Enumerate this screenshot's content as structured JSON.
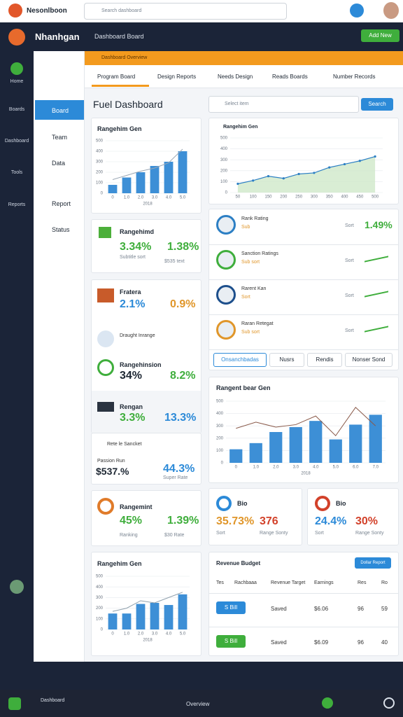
{
  "browser": {
    "logo": "Nesonlboon",
    "search": "Search dashboard"
  },
  "header": {
    "brand": "Nhanhgan",
    "subtitle": "Dashboard Board",
    "button": "Add New"
  },
  "nav": [
    "Home",
    "Boards",
    "Dashboard",
    "Tools",
    "Reports"
  ],
  "subnav": [
    "Board",
    "Team",
    "Data",
    "Report",
    "Status"
  ],
  "notice": "Dashboard Overview",
  "tabs": [
    "Program Board",
    "Design Reports",
    "Needs Design",
    "Reads Boards",
    "Number Records"
  ],
  "page_title": "Fuel Dashboard",
  "select": "Select item",
  "search_button": "Search",
  "kpis": [
    {
      "title": "Rangehimd",
      "v1": "3.34%",
      "v2": "1.38%",
      "note1": "Subtitle sort",
      "note2": "$535 text"
    },
    {
      "title": "Fratera",
      "v1": "2.1%",
      "v2": "0.9%"
    },
    {
      "title": "Draught Inrange"
    },
    {
      "title": "Rangehinsion",
      "v1": "34%",
      "v2": "8.2%"
    },
    {
      "title": "Rengan",
      "v1": "3.3%",
      "v2": "13.3%"
    },
    {
      "title": "Rete le Sancket",
      "label": "Passion Run",
      "v1": "$537.%",
      "v2": "44.3%",
      "note2": "Super Rate"
    },
    {
      "title": "Rangemint",
      "v1": "45%",
      "v2": "1.39%",
      "note1": "Ranking",
      "note2": "$30 Rate"
    }
  ],
  "list": {
    "rows": [
      {
        "title": "Rank Rating",
        "sub": "Sub",
        "value": "1.49%",
        "label": "Sort"
      },
      {
        "title": "Sanction Ratings",
        "sub": "Sub sort",
        "label": "Sort"
      },
      {
        "title": "Rarent Kan",
        "sub": "Sort",
        "label": "Sort"
      },
      {
        "title": "Raran Retegat",
        "sub": "Sub sort",
        "label": "Sort"
      }
    ],
    "buttons": [
      "Onsanchbadas",
      "Nusrs",
      "Rendis",
      "Nonser Sond"
    ]
  },
  "small_cards": [
    {
      "title": "Bio",
      "v1": "35.73%",
      "v2": "376",
      "note1": "Sort",
      "note2": "Range Sonty"
    },
    {
      "title": "Bio",
      "v1": "24.4%",
      "v2": "30%",
      "note1": "Sort",
      "note2": "Range Sonty"
    }
  ],
  "table": {
    "title": "Revenue Budget",
    "button": "Dollar Report",
    "headers": [
      "Tes",
      "Rachbaaa",
      "Revenue Target",
      "Earnings",
      "Res",
      "Ro"
    ],
    "rows": [
      [
        "S Bill",
        "Saved",
        "$6.06",
        "96",
        "59"
      ],
      [
        "S Bill",
        "Saved",
        "$6.09",
        "96",
        "40"
      ]
    ]
  },
  "footer": {
    "left": "Dashboard",
    "center": "Overview"
  },
  "chart_data": [
    {
      "type": "bar",
      "title": "Rangehim Gen",
      "xlabel": "2018",
      "categories": [
        "0",
        "1.0",
        "2.0",
        "3.0",
        "4.0",
        "5.0"
      ],
      "series": [
        {
          "type": "bar",
          "color": "#3d8fd6",
          "values": [
            80,
            150,
            200,
            260,
            300,
            400
          ]
        },
        {
          "type": "line",
          "color": "#9aa7b4",
          "values": [
            130,
            170,
            210,
            240,
            290,
            420
          ]
        }
      ],
      "ylim": [
        0,
        500
      ],
      "yticks": [
        0,
        100,
        200,
        300,
        400,
        500
      ],
      "grid": true
    },
    {
      "type": "area",
      "title": "Rangehim Gen",
      "categories": [
        "50",
        "100",
        "150",
        "200",
        "250",
        "300",
        "350",
        "400",
        "450",
        "500"
      ],
      "series": [
        {
          "type": "area",
          "color": "#2c7fc4",
          "values": [
            80,
            110,
            150,
            130,
            170,
            180,
            230,
            260,
            290,
            330
          ]
        }
      ],
      "ylim": [
        0,
        500
      ],
      "yticks": [
        0,
        100,
        200,
        300,
        400,
        500
      ],
      "grid": true
    },
    {
      "type": "bar",
      "title": "Rangent bear Gen",
      "xlabel": "2018",
      "categories": [
        "0",
        "1.0",
        "2.0",
        "3.0",
        "4.0",
        "5.0",
        "6.0",
        "7.0"
      ],
      "series": [
        {
          "type": "bar",
          "color": "#3d8fd6",
          "values": [
            110,
            160,
            250,
            290,
            340,
            190,
            310,
            390
          ]
        },
        {
          "type": "line",
          "color": "#8a5a4a",
          "values": [
            280,
            330,
            290,
            310,
            380,
            220,
            450,
            300
          ]
        }
      ],
      "ylim": [
        0,
        500
      ],
      "yticks": [
        0,
        100,
        200,
        300,
        400,
        500
      ],
      "grid": true
    },
    {
      "type": "bar",
      "title": "Rangehim Gen",
      "xlabel": "2018",
      "categories": [
        "0",
        "1.0",
        "2.0",
        "3.0",
        "4.0",
        "5.0"
      ],
      "series": [
        {
          "type": "bar",
          "color": "#3d8fd6",
          "values": [
            150,
            150,
            240,
            250,
            230,
            330
          ]
        },
        {
          "type": "line",
          "color": "#8fa0ad",
          "values": [
            170,
            200,
            270,
            250,
            300,
            350
          ]
        }
      ],
      "ylim": [
        0,
        500
      ],
      "yticks": [
        0,
        100,
        200,
        300,
        400,
        500
      ],
      "grid": true
    }
  ]
}
